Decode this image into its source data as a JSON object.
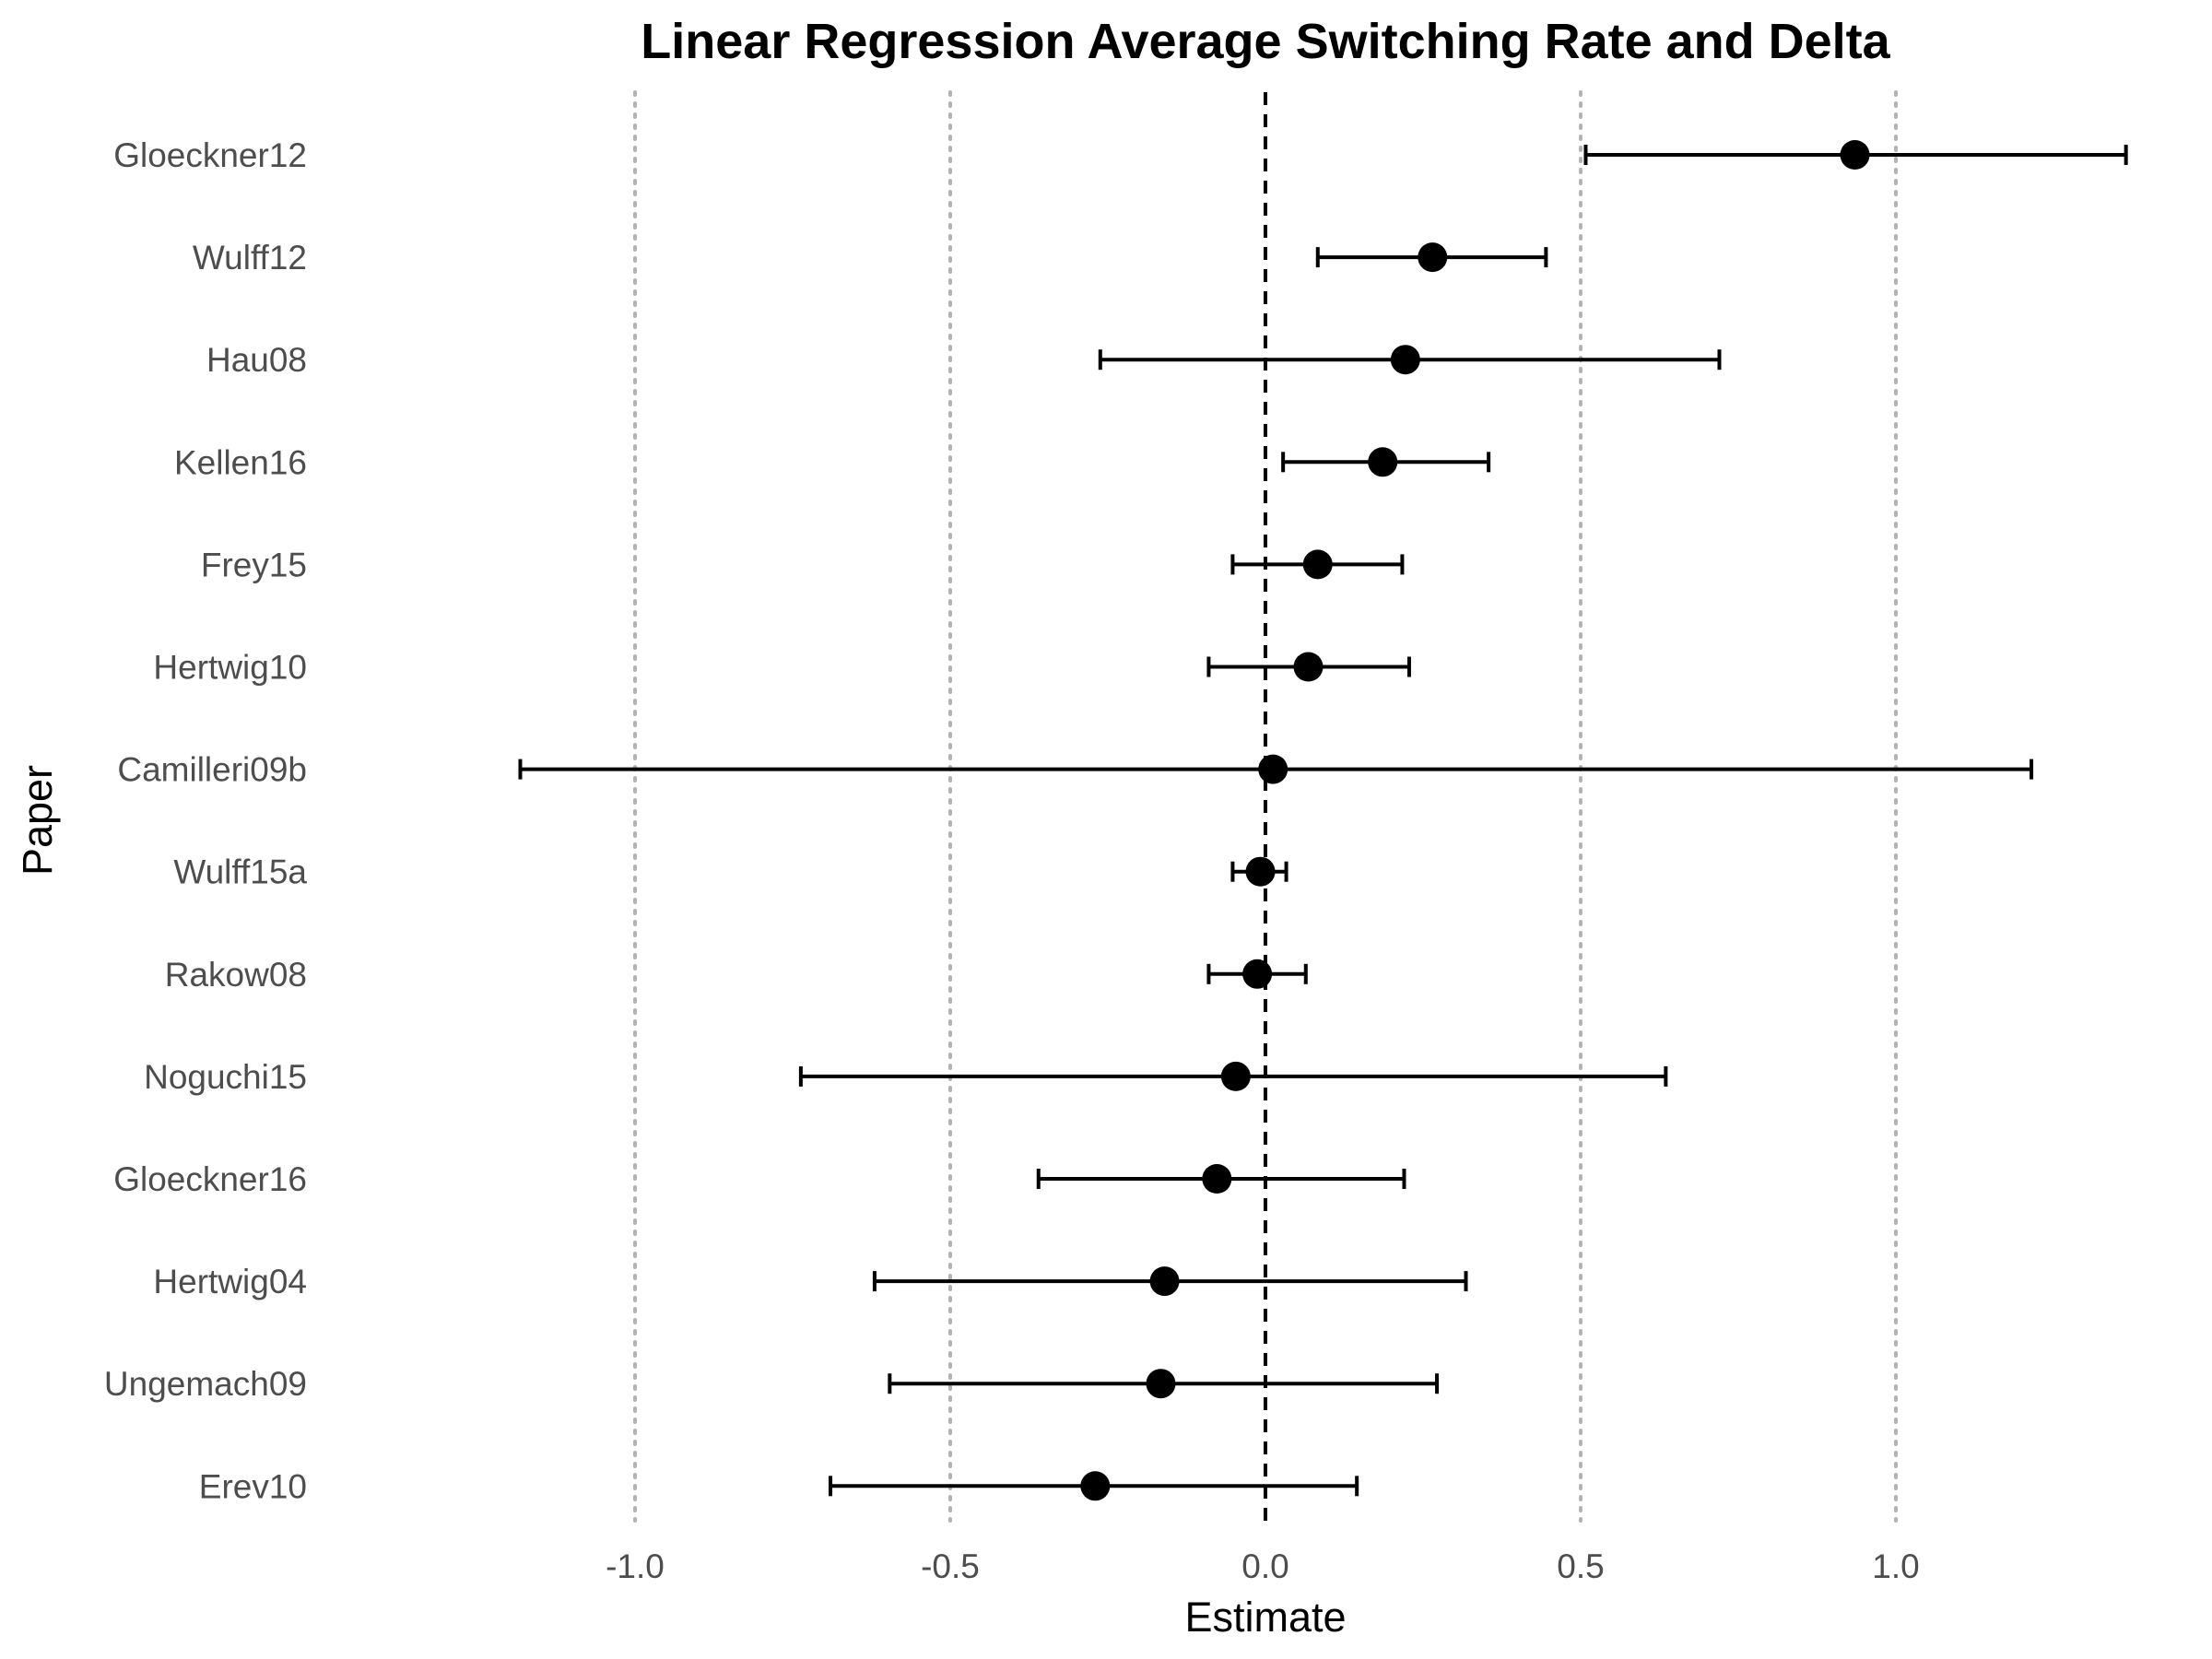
{
  "chart_data": {
    "type": "errorbar",
    "title": "Linear Regression Average Switching Rate and Delta",
    "xlabel": "Estimate",
    "ylabel": "Paper",
    "xlim": [
      -1.25,
      1.42
    ],
    "xticks": [
      -1.0,
      -0.5,
      0.0,
      0.5,
      1.0
    ],
    "xtick_labels": [
      "-1.0",
      "-0.5",
      "0.0",
      "0.5",
      "1.0"
    ],
    "reference_line": 0.0,
    "grid": "vertical major lines, dotted",
    "legend": "none",
    "point_color": "#000000",
    "categories": [
      "Gloeckner12",
      "Wulff12",
      "Hau08",
      "Kellen16",
      "Frey15",
      "Hertwig10",
      "Camilleri09b",
      "Wulff15a",
      "Rakow08",
      "Noguchi15",
      "Gloeckner16",
      "Hertwig04",
      "Ungemach09",
      "Erev10"
    ],
    "estimates": [
      0.935,
      0.265,
      0.222,
      0.186,
      0.083,
      0.068,
      0.012,
      -0.008,
      -0.013,
      -0.047,
      -0.077,
      -0.16,
      -0.166,
      -0.27
    ],
    "lower": [
      0.508,
      0.083,
      -0.262,
      0.028,
      -0.052,
      -0.09,
      -1.182,
      -0.052,
      -0.09,
      -0.737,
      -0.36,
      -0.62,
      -0.596,
      -0.69
    ],
    "upper": [
      1.365,
      0.445,
      0.72,
      0.354,
      0.217,
      0.228,
      1.215,
      0.033,
      0.064,
      0.635,
      0.22,
      0.318,
      0.272,
      0.145
    ]
  }
}
